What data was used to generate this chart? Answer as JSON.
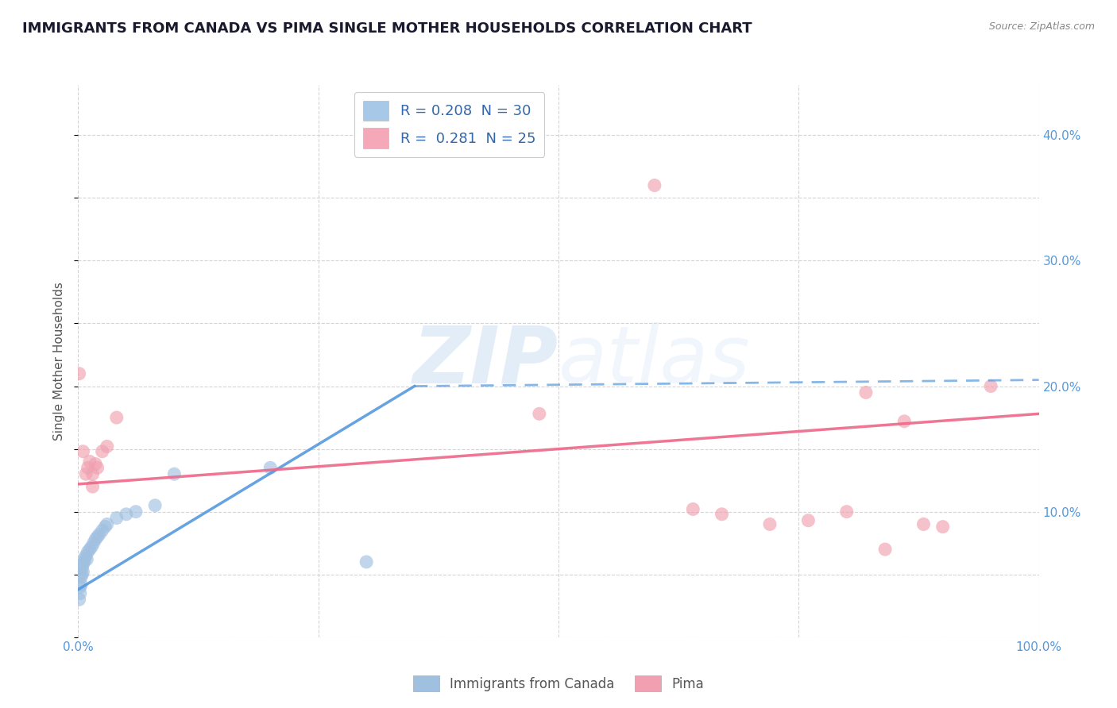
{
  "title": "IMMIGRANTS FROM CANADA VS PIMA SINGLE MOTHER HOUSEHOLDS CORRELATION CHART",
  "source": "Source: ZipAtlas.com",
  "ylabel": "Single Mother Households",
  "xlim": [
    0,
    1.0
  ],
  "ylim": [
    0,
    0.44
  ],
  "xticks": [
    0.0,
    0.25,
    0.5,
    0.75,
    1.0
  ],
  "xtick_labels": [
    "0.0%",
    "",
    "",
    "",
    "100.0%"
  ],
  "ytick_labels_right": [
    "",
    "10.0%",
    "20.0%",
    "30.0%",
    "40.0%"
  ],
  "yticks_right": [
    0.0,
    0.1,
    0.2,
    0.3,
    0.4
  ],
  "legend_entries": [
    {
      "label": "R = 0.208  N = 30",
      "color": "#a8c8e8"
    },
    {
      "label": "R =  0.281  N = 25",
      "color": "#f4a8b8"
    }
  ],
  "watermark_zip": "ZIP",
  "watermark_atlas": "atlas",
  "blue_color": "#a0c0e0",
  "pink_color": "#f0a0b0",
  "blue_line_color": "#5599dd",
  "pink_line_color": "#ee6688",
  "blue_scatter": [
    [
      0.001,
      0.03
    ],
    [
      0.002,
      0.035
    ],
    [
      0.002,
      0.04
    ],
    [
      0.003,
      0.042
    ],
    [
      0.003,
      0.048
    ],
    [
      0.004,
      0.05
    ],
    [
      0.004,
      0.055
    ],
    [
      0.005,
      0.052
    ],
    [
      0.005,
      0.058
    ],
    [
      0.006,
      0.06
    ],
    [
      0.007,
      0.063
    ],
    [
      0.008,
      0.065
    ],
    [
      0.009,
      0.062
    ],
    [
      0.01,
      0.068
    ],
    [
      0.012,
      0.07
    ],
    [
      0.014,
      0.072
    ],
    [
      0.016,
      0.075
    ],
    [
      0.018,
      0.078
    ],
    [
      0.02,
      0.08
    ],
    [
      0.022,
      0.082
    ],
    [
      0.025,
      0.085
    ],
    [
      0.028,
      0.088
    ],
    [
      0.03,
      0.09
    ],
    [
      0.04,
      0.095
    ],
    [
      0.05,
      0.098
    ],
    [
      0.06,
      0.1
    ],
    [
      0.08,
      0.105
    ],
    [
      0.1,
      0.13
    ],
    [
      0.2,
      0.135
    ],
    [
      0.3,
      0.06
    ]
  ],
  "pink_scatter": [
    [
      0.001,
      0.21
    ],
    [
      0.005,
      0.148
    ],
    [
      0.008,
      0.13
    ],
    [
      0.01,
      0.135
    ],
    [
      0.012,
      0.14
    ],
    [
      0.015,
      0.13
    ],
    [
      0.018,
      0.138
    ],
    [
      0.02,
      0.135
    ],
    [
      0.025,
      0.148
    ],
    [
      0.03,
      0.152
    ],
    [
      0.04,
      0.175
    ],
    [
      0.48,
      0.178
    ],
    [
      0.6,
      0.36
    ],
    [
      0.64,
      0.102
    ],
    [
      0.67,
      0.098
    ],
    [
      0.72,
      0.09
    ],
    [
      0.76,
      0.093
    ],
    [
      0.8,
      0.1
    ],
    [
      0.82,
      0.195
    ],
    [
      0.86,
      0.172
    ],
    [
      0.84,
      0.07
    ],
    [
      0.88,
      0.09
    ],
    [
      0.9,
      0.088
    ],
    [
      0.95,
      0.2
    ],
    [
      0.015,
      0.12
    ]
  ],
  "blue_solid_line": [
    [
      0.0,
      0.038
    ],
    [
      0.35,
      0.2
    ]
  ],
  "blue_dash_line": [
    [
      0.35,
      0.2
    ],
    [
      1.0,
      0.205
    ]
  ],
  "pink_line": [
    [
      0.0,
      0.122
    ],
    [
      1.0,
      0.178
    ]
  ],
  "grid_color": "#d0d0d0",
  "background_color": "#ffffff",
  "title_fontsize": 13,
  "label_fontsize": 11,
  "tick_fontsize": 11,
  "tick_color": "#5599dd"
}
